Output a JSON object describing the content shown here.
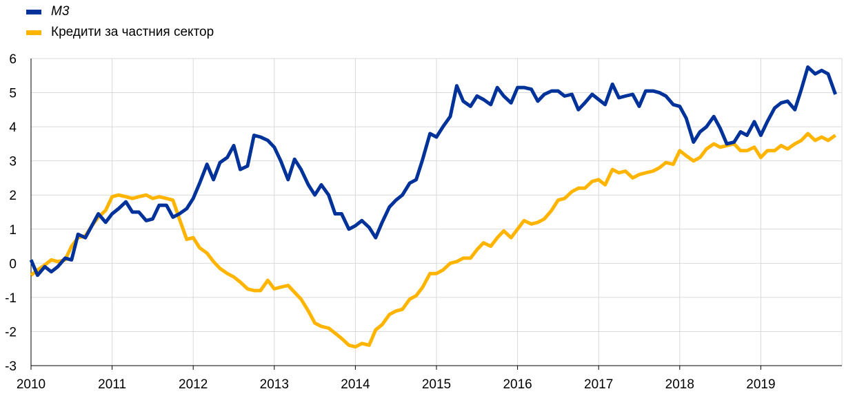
{
  "chart_data": {
    "type": "line",
    "title": "",
    "xlabel": "",
    "ylabel": "",
    "ylim": [
      -3,
      6
    ],
    "yticks": [
      "6",
      "5",
      "4",
      "3",
      "2",
      "1",
      "0",
      "-1",
      "-2",
      "-3"
    ],
    "xticks": [
      "2010",
      "2011",
      "2012",
      "2013",
      "2014",
      "2015",
      "2016",
      "2017",
      "2018",
      "2019"
    ],
    "xlim": [
      2010.0,
      2020.0
    ],
    "grid": true,
    "legend_position": "top-left",
    "series": [
      {
        "name": "М3",
        "color": "#003299",
        "style": "italic",
        "x": [
          2010.0,
          2010.08,
          2010.17,
          2010.25,
          2010.33,
          2010.42,
          2010.5,
          2010.58,
          2010.67,
          2010.75,
          2010.83,
          2010.92,
          2011.0,
          2011.08,
          2011.17,
          2011.25,
          2011.33,
          2011.42,
          2011.5,
          2011.58,
          2011.67,
          2011.75,
          2011.83,
          2011.92,
          2012.0,
          2012.08,
          2012.17,
          2012.25,
          2012.33,
          2012.42,
          2012.5,
          2012.58,
          2012.67,
          2012.75,
          2012.83,
          2012.92,
          2013.0,
          2013.08,
          2013.17,
          2013.25,
          2013.33,
          2013.42,
          2013.5,
          2013.58,
          2013.67,
          2013.75,
          2013.83,
          2013.92,
          2014.0,
          2014.08,
          2014.17,
          2014.25,
          2014.33,
          2014.42,
          2014.5,
          2014.58,
          2014.67,
          2014.75,
          2014.83,
          2014.92,
          2015.0,
          2015.08,
          2015.17,
          2015.25,
          2015.33,
          2015.42,
          2015.5,
          2015.58,
          2015.67,
          2015.75,
          2015.83,
          2015.92,
          2016.0,
          2016.08,
          2016.17,
          2016.25,
          2016.33,
          2016.42,
          2016.5,
          2016.58,
          2016.67,
          2016.75,
          2016.83,
          2016.92,
          2017.0,
          2017.08,
          2017.17,
          2017.25,
          2017.33,
          2017.42,
          2017.5,
          2017.58,
          2017.67,
          2017.75,
          2017.83,
          2017.92,
          2018.0,
          2018.08,
          2018.17,
          2018.25,
          2018.33,
          2018.42,
          2018.5,
          2018.58,
          2018.67,
          2018.75,
          2018.83,
          2018.92,
          2019.0,
          2019.08,
          2019.17,
          2019.25,
          2019.33,
          2019.42,
          2019.5,
          2019.58,
          2019.67,
          2019.75,
          2019.83,
          2019.92
        ],
        "values": [
          0.1,
          -0.35,
          -0.1,
          -0.25,
          -0.1,
          0.15,
          0.1,
          0.85,
          0.75,
          1.1,
          1.45,
          1.2,
          1.45,
          1.6,
          1.8,
          1.5,
          1.5,
          1.25,
          1.3,
          1.7,
          1.7,
          1.35,
          1.45,
          1.6,
          1.9,
          2.35,
          2.9,
          2.45,
          2.95,
          3.1,
          3.45,
          2.75,
          2.85,
          3.75,
          3.7,
          3.6,
          3.4,
          3.0,
          2.45,
          3.05,
          2.75,
          2.3,
          2.0,
          2.3,
          2.0,
          1.45,
          1.45,
          1.0,
          1.1,
          1.25,
          1.05,
          0.75,
          1.2,
          1.65,
          1.85,
          2.0,
          2.35,
          2.45,
          3.05,
          3.8,
          3.7,
          4.0,
          4.3,
          5.2,
          4.75,
          4.6,
          4.9,
          4.8,
          4.65,
          5.15,
          4.9,
          4.7,
          5.15,
          5.15,
          5.1,
          4.75,
          4.95,
          5.05,
          5.05,
          4.9,
          4.95,
          4.5,
          4.7,
          4.95,
          4.8,
          4.65,
          5.25,
          4.85,
          4.9,
          4.95,
          4.6,
          5.05,
          5.05,
          5.0,
          4.9,
          4.65,
          4.6,
          4.25,
          3.55,
          3.85,
          4.0,
          4.3,
          3.95,
          3.5,
          3.55,
          3.85,
          3.75,
          4.15,
          3.75,
          4.15,
          4.55,
          4.7,
          4.75,
          4.5,
          5.1,
          5.75,
          5.55,
          5.65,
          5.55,
          4.95
        ]
      },
      {
        "name": "Кредити за частния сектор",
        "color": "#FFB400",
        "x": [
          2010.0,
          2010.08,
          2010.17,
          2010.25,
          2010.33,
          2010.42,
          2010.5,
          2010.58,
          2010.67,
          2010.75,
          2010.83,
          2010.92,
          2011.0,
          2011.08,
          2011.17,
          2011.25,
          2011.33,
          2011.42,
          2011.5,
          2011.58,
          2011.67,
          2011.75,
          2011.83,
          2011.92,
          2012.0,
          2012.08,
          2012.17,
          2012.25,
          2012.33,
          2012.42,
          2012.5,
          2012.58,
          2012.67,
          2012.75,
          2012.83,
          2012.92,
          2013.0,
          2013.08,
          2013.17,
          2013.25,
          2013.33,
          2013.42,
          2013.5,
          2013.58,
          2013.67,
          2013.75,
          2013.83,
          2013.92,
          2014.0,
          2014.08,
          2014.17,
          2014.25,
          2014.33,
          2014.42,
          2014.5,
          2014.58,
          2014.67,
          2014.75,
          2014.83,
          2014.92,
          2015.0,
          2015.08,
          2015.17,
          2015.25,
          2015.33,
          2015.42,
          2015.5,
          2015.58,
          2015.67,
          2015.75,
          2015.83,
          2015.92,
          2016.0,
          2016.08,
          2016.17,
          2016.25,
          2016.33,
          2016.42,
          2016.5,
          2016.58,
          2016.67,
          2016.75,
          2016.83,
          2016.92,
          2017.0,
          2017.08,
          2017.17,
          2017.25,
          2017.33,
          2017.42,
          2017.5,
          2017.58,
          2017.67,
          2017.75,
          2017.83,
          2017.92,
          2018.0,
          2018.08,
          2018.17,
          2018.25,
          2018.33,
          2018.42,
          2018.5,
          2018.58,
          2018.67,
          2018.75,
          2018.83,
          2018.92,
          2019.0,
          2019.08,
          2019.17,
          2019.25,
          2019.33,
          2019.42,
          2019.5,
          2019.58,
          2019.67,
          2019.75,
          2019.83,
          2019.92
        ],
        "values": [
          -0.35,
          -0.2,
          -0.05,
          0.1,
          0.05,
          0.1,
          0.5,
          0.75,
          0.8,
          1.1,
          1.35,
          1.55,
          1.95,
          2.0,
          1.95,
          1.9,
          1.95,
          2.0,
          1.9,
          1.95,
          1.9,
          1.85,
          1.3,
          0.7,
          0.75,
          0.45,
          0.3,
          0.05,
          -0.15,
          -0.3,
          -0.4,
          -0.55,
          -0.75,
          -0.8,
          -0.8,
          -0.5,
          -0.75,
          -0.7,
          -0.65,
          -0.85,
          -1.05,
          -1.4,
          -1.75,
          -1.85,
          -1.9,
          -2.05,
          -2.2,
          -2.4,
          -2.45,
          -2.35,
          -2.4,
          -1.95,
          -1.8,
          -1.5,
          -1.4,
          -1.35,
          -1.05,
          -0.95,
          -0.7,
          -0.3,
          -0.3,
          -0.2,
          0.0,
          0.05,
          0.15,
          0.15,
          0.4,
          0.6,
          0.5,
          0.75,
          0.95,
          0.75,
          1.0,
          1.25,
          1.15,
          1.2,
          1.3,
          1.55,
          1.85,
          1.9,
          2.1,
          2.2,
          2.2,
          2.4,
          2.45,
          2.3,
          2.75,
          2.65,
          2.7,
          2.5,
          2.6,
          2.65,
          2.7,
          2.8,
          2.95,
          2.9,
          3.3,
          3.15,
          3.0,
          3.1,
          3.35,
          3.5,
          3.4,
          3.45,
          3.5,
          3.3,
          3.3,
          3.4,
          3.1,
          3.3,
          3.3,
          3.45,
          3.35,
          3.5,
          3.6,
          3.8,
          3.6,
          3.7,
          3.6,
          3.75
        ]
      }
    ]
  }
}
